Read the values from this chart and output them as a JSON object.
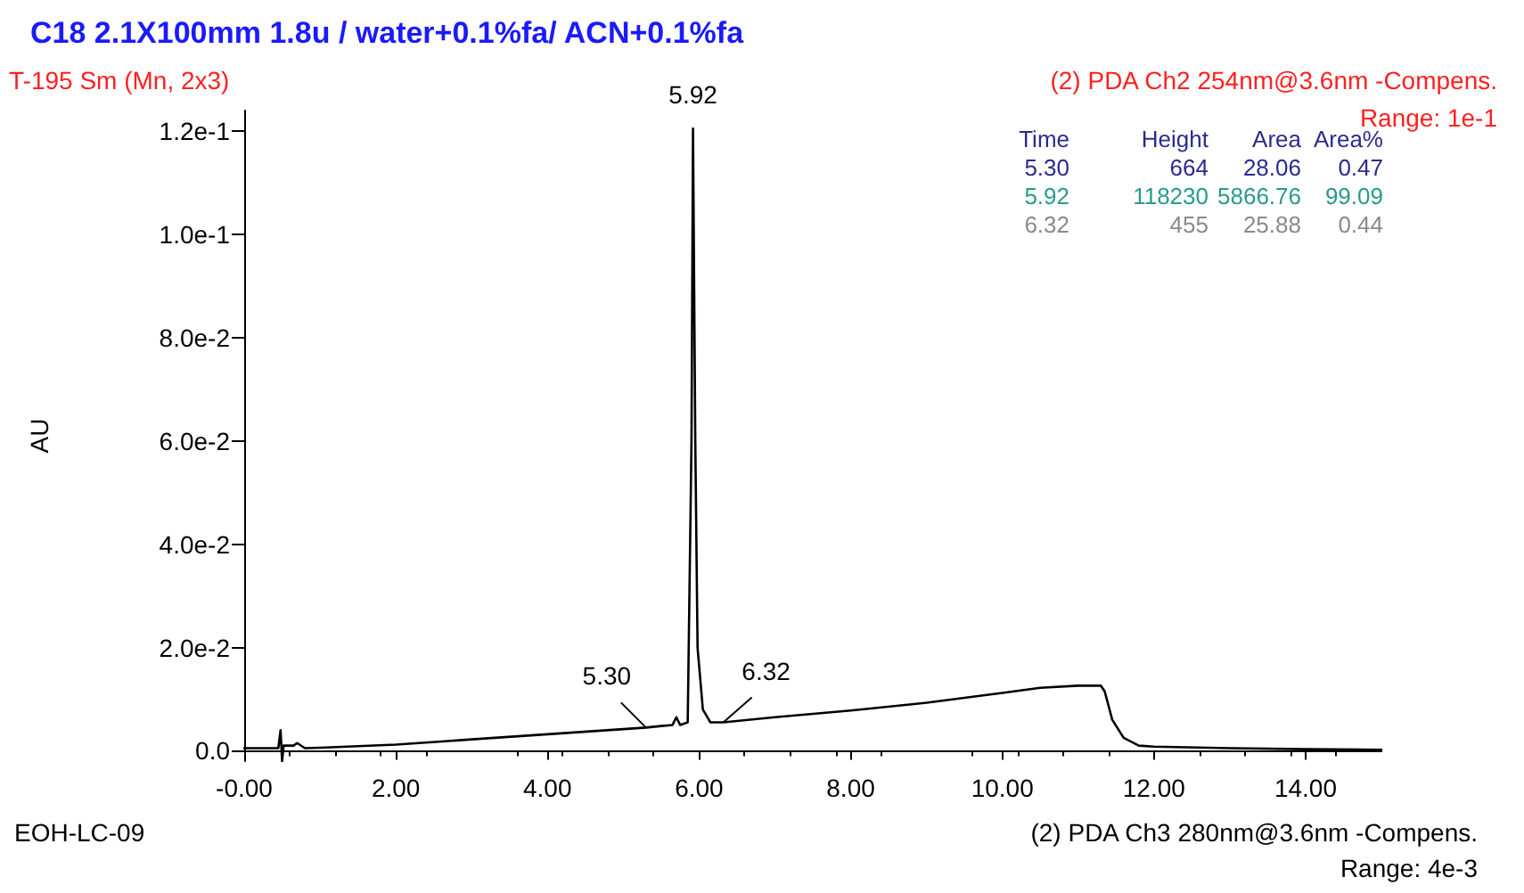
{
  "chart_data": {
    "type": "line",
    "title": "C18 2.1X100mm 1.8u / water+0.1%fa/ ACN+0.1%fa",
    "subtitle": "T-195 Sm (Mn, 2x3)",
    "ylabel": "AU",
    "x": [
      0,
      0.45,
      0.48,
      0.5,
      0.52,
      0.65,
      0.7,
      0.8,
      1,
      2,
      3,
      4,
      5,
      5.3,
      5.5,
      5.65,
      5.7,
      5.75,
      5.85,
      5.9,
      5.92,
      5.95,
      5.98,
      6.05,
      6.15,
      6.32,
      7,
      8,
      9,
      10,
      10.5,
      11,
      11.3,
      11.35,
      11.45,
      11.6,
      11.8,
      12,
      13,
      14,
      15
    ],
    "series": [
      {
        "color": "#000000",
        "values": [
          0.0005,
          0.0005,
          0.004,
          -0.002,
          0.001,
          0.001,
          0.0015,
          0.0005,
          0.0006,
          0.0012,
          0.0022,
          0.0032,
          0.0042,
          0.0045,
          0.0048,
          0.005,
          0.0065,
          0.005,
          0.0055,
          0.06,
          0.1205,
          0.06,
          0.02,
          0.008,
          0.0055,
          0.0055,
          0.0065,
          0.0078,
          0.0093,
          0.0112,
          0.0122,
          0.0126,
          0.0126,
          0.0115,
          0.006,
          0.0025,
          0.001,
          0.0008,
          0.0005,
          0.0003,
          0.0002
        ]
      }
    ],
    "xlim": [
      0,
      15
    ],
    "ylim": [
      -0.002,
      0.124
    ],
    "xticks": [
      {
        "value": 0,
        "label": "-0.00"
      },
      {
        "value": 2,
        "label": "2.00"
      },
      {
        "value": 4,
        "label": "4.00"
      },
      {
        "value": 6,
        "label": "6.00"
      },
      {
        "value": 8,
        "label": "8.00"
      },
      {
        "value": 10,
        "label": "10.00"
      },
      {
        "value": 12,
        "label": "12.00"
      },
      {
        "value": 14,
        "label": "14.00"
      }
    ],
    "yticks": [
      {
        "value": 0,
        "label": "0.0"
      },
      {
        "value": 0.02,
        "label": "2.0e-2"
      },
      {
        "value": 0.04,
        "label": "4.0e-2"
      },
      {
        "value": 0.06,
        "label": "6.0e-2"
      },
      {
        "value": 0.08,
        "label": "8.0e-2"
      },
      {
        "value": 0.1,
        "label": "1.0e-1"
      },
      {
        "value": 0.12,
        "label": "1.2e-1"
      }
    ],
    "grid": false,
    "marker": "none",
    "line_style": "solid",
    "annotations": [
      "(2) PDA Ch2 254nm@3.6nm -Compens.",
      "Range: 1e-1",
      "Time",
      "Height",
      "Area",
      "Area%",
      "5.30",
      "664",
      "28.06",
      "0.47",
      "5.92",
      "118230",
      "5866.76",
      "99.09",
      "6.32",
      "455",
      "25.88",
      "0.44",
      "EOH-LC-09",
      "(2) PDA Ch3 280nm@3.6nm -Compens.",
      "Range: 4e-3",
      {
        "text": "5.92",
        "x": 5.92,
        "y": 0.1205
      },
      {
        "text": "5.30",
        "x": 5.3,
        "y": 0.0045
      },
      {
        "text": "6.32",
        "x": 6.32,
        "y": 0.0055
      }
    ]
  }
}
